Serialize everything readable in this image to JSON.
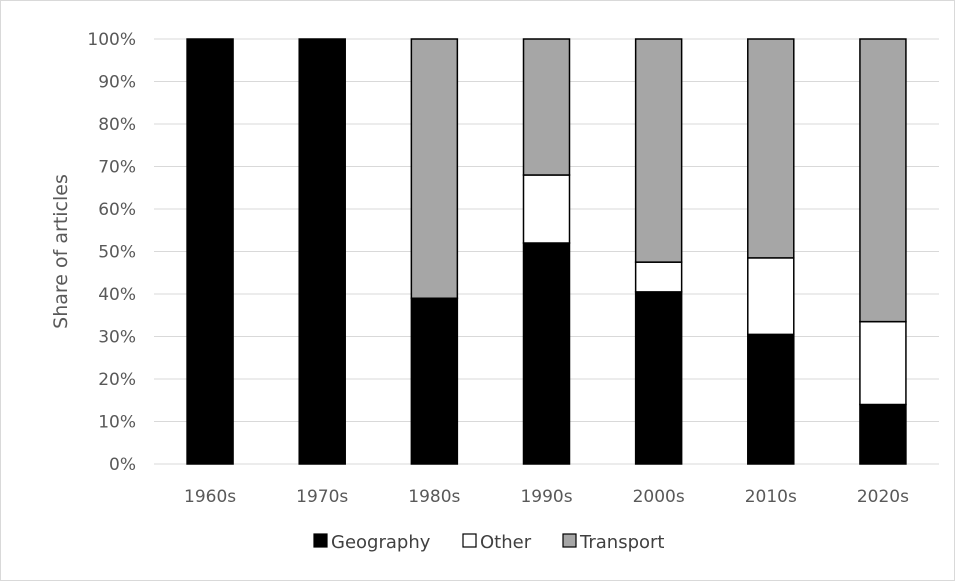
{
  "chart_data": {
    "type": "bar",
    "stacked": true,
    "percent_stacked": true,
    "categories": [
      "1960s",
      "1970s",
      "1980s",
      "1990s",
      "2000s",
      "2010s",
      "2020s"
    ],
    "series": [
      {
        "name": "Geography",
        "color": "#000000",
        "values": [
          100,
          100,
          39,
          52,
          40.5,
          30.5,
          14
        ]
      },
      {
        "name": "Other",
        "color": "#ffffff",
        "values": [
          0,
          0,
          0,
          16,
          7,
          18,
          19.5
        ]
      },
      {
        "name": "Transport",
        "color": "#a6a6a6",
        "values": [
          0,
          0,
          61,
          32,
          52.5,
          51.5,
          66.5
        ]
      }
    ],
    "ylabel": "Share of articles",
    "xlabel": "",
    "ylim": [
      0,
      100
    ],
    "yticks": [
      "0%",
      "10%",
      "20%",
      "30%",
      "40%",
      "50%",
      "60%",
      "70%",
      "80%",
      "90%",
      "100%"
    ],
    "grid": true,
    "legend_position": "bottom"
  }
}
